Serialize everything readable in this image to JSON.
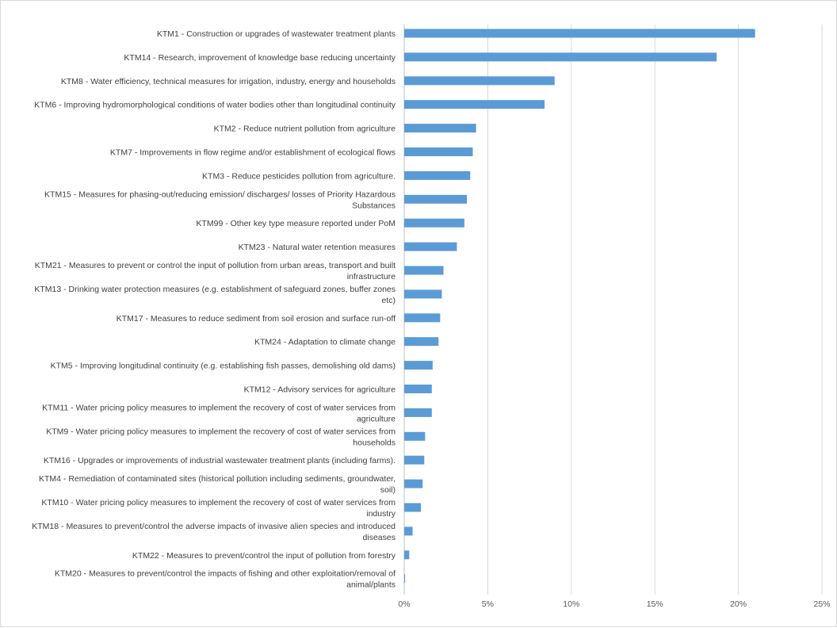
{
  "chart_data": {
    "type": "bar",
    "orientation": "horizontal",
    "title": "",
    "xlabel": "",
    "ylabel": "",
    "xlim": [
      0,
      25
    ],
    "x_ticks": [
      "0%",
      "5%",
      "10%",
      "15%",
      "20%",
      "25%"
    ],
    "grid": "vertical",
    "legend": "none",
    "bar_color": "#5b9bd5",
    "categories": [
      [
        "KTM1 - Construction or upgrades of wastewater treatment plants"
      ],
      [
        "KTM14 - Research, improvement of knowledge base reducing uncertainty"
      ],
      [
        "KTM8 - Water efficiency, technical measures for irrigation, industry, energy and households"
      ],
      [
        "KTM6 - Improving hydromorphological conditions of water bodies other than longitudinal continuity"
      ],
      [
        "KTM2 - Reduce nutrient pollution from agriculture"
      ],
      [
        "KTM7 - Improvements in flow regime and/or establishment of ecological flows"
      ],
      [
        "KTM3 - Reduce pesticides pollution from agriculture."
      ],
      [
        "KTM15 - Measures for phasing-out/reducing emission/ discharges/ losses of Priority Hazardous",
        "Substances"
      ],
      [
        "KTM99 - Other key type measure reported under PoM"
      ],
      [
        "KTM23 - Natural water retention measures"
      ],
      [
        "KTM21 - Measures to prevent or control the input of pollution from urban areas, transport and built",
        "infrastructure"
      ],
      [
        "KTM13 - Drinking water protection measures (e.g. establishment of safeguard zones, buffer zones",
        "etc)"
      ],
      [
        "KTM17 - Measures to reduce sediment from soil erosion and surface run-off"
      ],
      [
        "KTM24 - Adaptation to climate change"
      ],
      [
        "KTM5 - Improving longitudinal continuity (e.g. establishing fish passes, demolishing old dams)"
      ],
      [
        "KTM12 - Advisory services for agriculture"
      ],
      [
        "KTM11 - Water pricing policy measures to implement the recovery of cost of water services from",
        "agriculture"
      ],
      [
        "KTM9 - Water pricing policy measures to implement the recovery of cost of water services from",
        "households"
      ],
      [
        "KTM16 - Upgrades or improvements of industrial wastewater treatment plants (including farms)."
      ],
      [
        "KTM4 - Remediation of contaminated sites (historical pollution including sediments, groundwater,",
        "soil)"
      ],
      [
        "KTM10 - Water pricing policy measures to implement the recovery of cost of water services from",
        "industry"
      ],
      [
        "KTM18 - Measures to prevent/control the adverse impacts of invasive alien species and introduced",
        "diseases"
      ],
      [
        "KTM22 - Measures to prevent/control the input of pollution from forestry"
      ],
      [
        "KTM20 - Measures to prevent/control the  impacts of fishing and other exploitation/removal of",
        "animal/plants"
      ]
    ],
    "values": [
      21.0,
      18.7,
      9.0,
      8.4,
      4.3,
      4.1,
      3.95,
      3.75,
      3.6,
      3.15,
      2.35,
      2.25,
      2.15,
      2.05,
      1.7,
      1.65,
      1.65,
      1.25,
      1.2,
      1.1,
      1.0,
      0.5,
      0.3,
      0.05
    ]
  }
}
